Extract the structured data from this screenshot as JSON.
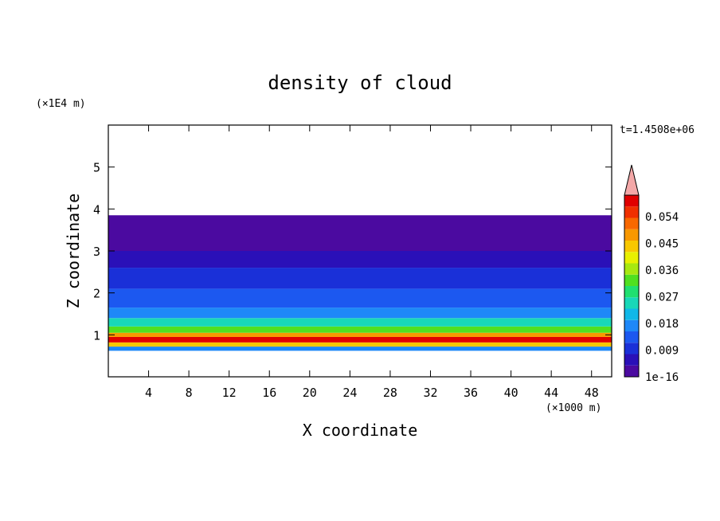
{
  "chart_data": {
    "type": "heatmap",
    "title": "density of cloud",
    "xlabel": "X coordinate",
    "ylabel": "Z coordinate",
    "x_unit": "(×1000 m)",
    "y_unit": "(×1E4 m)",
    "time_label": "t=1.4508e+06",
    "xlim": [
      0,
      50
    ],
    "ylim": [
      0,
      6
    ],
    "x_ticks": [
      4,
      8,
      12,
      16,
      20,
      24,
      28,
      32,
      36,
      40,
      44,
      48
    ],
    "y_ticks": [
      1,
      2,
      3,
      4,
      5
    ],
    "colorbar": {
      "tick_labels": [
        "1e-16",
        "0.009",
        "0.018",
        "0.027",
        "0.036",
        "0.045",
        "0.054"
      ],
      "levels": [
        "#4b0aa0",
        "#2a10b8",
        "#1a30d8",
        "#1c58f0",
        "#1e88f8",
        "#10b8e8",
        "#18d8b8",
        "#20e070",
        "#50e020",
        "#a8e810",
        "#e8f000",
        "#f8c800",
        "#f89800",
        "#f86800",
        "#f03000",
        "#e00000"
      ],
      "overflow_color": "#f4a8a8"
    },
    "cloud_layers": [
      {
        "z_bottom": 0.62,
        "z_top": 0.72,
        "level": 4
      },
      {
        "z_bottom": 0.72,
        "z_top": 0.82,
        "level": 11
      },
      {
        "z_bottom": 0.82,
        "z_top": 0.95,
        "level": 15
      },
      {
        "z_bottom": 0.95,
        "z_top": 1.05,
        "level": 12
      },
      {
        "z_bottom": 1.05,
        "z_top": 1.2,
        "level": 8
      },
      {
        "z_bottom": 1.2,
        "z_top": 1.4,
        "level": 6
      },
      {
        "z_bottom": 1.4,
        "z_top": 1.65,
        "level": 4
      },
      {
        "z_bottom": 1.65,
        "z_top": 2.1,
        "level": 3
      },
      {
        "z_bottom": 2.1,
        "z_top": 2.6,
        "level": 2
      },
      {
        "z_bottom": 2.6,
        "z_top": 3.0,
        "level": 1
      },
      {
        "z_bottom": 3.0,
        "z_top": 3.85,
        "level": 0
      }
    ]
  }
}
